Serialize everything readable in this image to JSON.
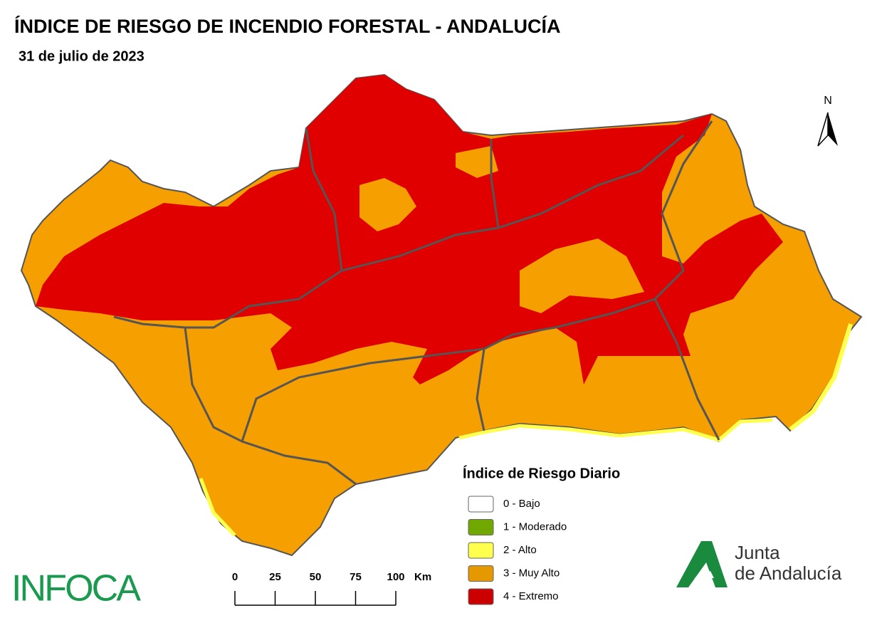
{
  "header": {
    "title": "ÍNDICE DE RIESGO DE INCENDIO FORESTAL - ANDALUCÍA",
    "subtitle": "31 de julio de 2023"
  },
  "north_arrow": "N",
  "legend": {
    "title": "Índice de Riesgo Diario",
    "items": [
      {
        "label": "0 - Bajo",
        "color": "#ffffff"
      },
      {
        "label": "1 - Moderado",
        "color": "#70a800"
      },
      {
        "label": "2 - Alto",
        "color": "#ffff4d"
      },
      {
        "label": "3 - Muy Alto",
        "color": "#e69800"
      },
      {
        "label": "4 - Extremo",
        "color": "#cc0000"
      }
    ]
  },
  "scale_bar": {
    "ticks": [
      0,
      25,
      50,
      75,
      100
    ],
    "unit": "Km"
  },
  "logos": {
    "left": "INFOCA",
    "right_line1": "Junta",
    "right_line2": "de Andalucía"
  }
}
